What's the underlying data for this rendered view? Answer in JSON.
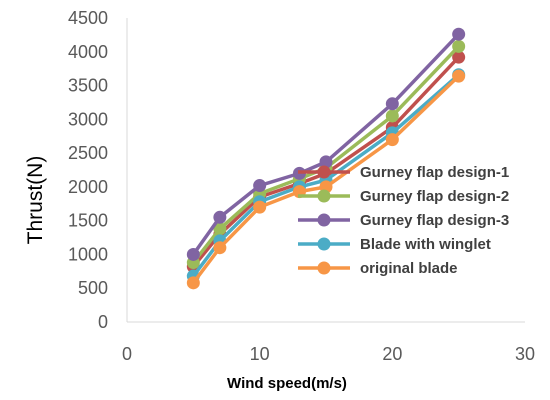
{
  "chart_data": {
    "type": "line",
    "title": "",
    "xlabel": "Wind speed(m/s)",
    "ylabel": "Thrust(N)",
    "xlim": [
      0,
      30
    ],
    "ylim": [
      0,
      4500
    ],
    "x_ticks": [
      0,
      10,
      20,
      30
    ],
    "y_ticks": [
      0,
      500,
      1000,
      1500,
      2000,
      2500,
      3000,
      3500,
      4000,
      4500
    ],
    "grid": false,
    "legend_position": "right",
    "x": [
      5,
      7,
      10,
      13,
      15,
      20,
      25
    ],
    "series": [
      {
        "name": "Gurney flap design-1",
        "color": "#C0504D",
        "values": [
          820,
          1300,
          1850,
          2050,
          2200,
          2880,
          3920
        ]
      },
      {
        "name": "Gurney flap design-2",
        "color": "#9BBB59",
        "values": [
          880,
          1380,
          1900,
          2120,
          2280,
          3050,
          4080
        ]
      },
      {
        "name": "Gurney flap design-3",
        "color": "#8064A2",
        "values": [
          1000,
          1550,
          2020,
          2200,
          2370,
          3230,
          4260
        ]
      },
      {
        "name": "Blade with winglet",
        "color": "#4BACC6",
        "values": [
          680,
          1200,
          1780,
          2000,
          2100,
          2800,
          3660
        ]
      },
      {
        "name": "original blade",
        "color": "#F79646",
        "values": [
          580,
          1100,
          1700,
          1930,
          2000,
          2700,
          3640
        ]
      }
    ]
  }
}
